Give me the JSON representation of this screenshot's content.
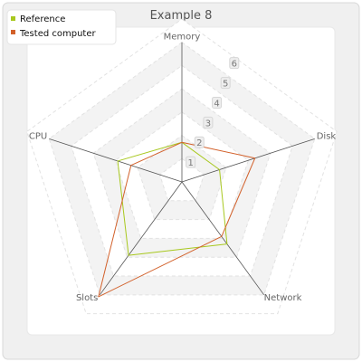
{
  "chart_data": {
    "type": "radar",
    "title": "Example 8",
    "axes": [
      "Memory",
      "Disk",
      "Network",
      "Slots",
      "CPU"
    ],
    "scale": {
      "min": 0,
      "max": 7,
      "tick_labels": [
        "1",
        "2",
        "3",
        "4",
        "5",
        "6"
      ]
    },
    "legend": {
      "position": "top-left"
    },
    "series": [
      {
        "name": "Reference",
        "color": "#a8c81e",
        "values": [
          1.7,
          1.7,
          3.3,
          3.9,
          2.9
        ]
      },
      {
        "name": "Tested computer",
        "color": "#d2602a",
        "values": [
          1.7,
          3.3,
          2.9,
          6.1,
          2.3
        ]
      }
    ]
  }
}
